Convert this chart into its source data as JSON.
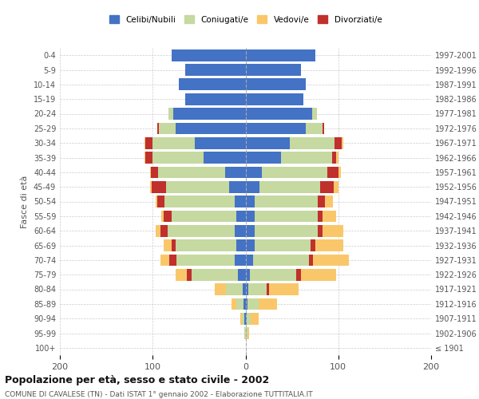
{
  "age_groups": [
    "100+",
    "95-99",
    "90-94",
    "85-89",
    "80-84",
    "75-79",
    "70-74",
    "65-69",
    "60-64",
    "55-59",
    "50-54",
    "45-49",
    "40-44",
    "35-39",
    "30-34",
    "25-29",
    "20-24",
    "15-19",
    "10-14",
    "5-9",
    "0-4"
  ],
  "birth_years": [
    "≤ 1901",
    "1902-1906",
    "1907-1911",
    "1912-1916",
    "1917-1921",
    "1922-1926",
    "1927-1931",
    "1932-1936",
    "1937-1941",
    "1942-1946",
    "1947-1951",
    "1952-1956",
    "1957-1961",
    "1962-1966",
    "1967-1971",
    "1972-1976",
    "1977-1981",
    "1982-1986",
    "1987-1991",
    "1992-1996",
    "1997-2001"
  ],
  "male": {
    "celibi": [
      0,
      0,
      1,
      2,
      3,
      8,
      12,
      10,
      12,
      10,
      12,
      18,
      22,
      45,
      55,
      75,
      78,
      65,
      72,
      65,
      80
    ],
    "coniugati": [
      0,
      1,
      3,
      8,
      18,
      50,
      62,
      65,
      72,
      70,
      75,
      68,
      72,
      55,
      45,
      18,
      5,
      0,
      0,
      0,
      0
    ],
    "vedovi": [
      0,
      0,
      2,
      5,
      12,
      12,
      10,
      8,
      5,
      3,
      2,
      2,
      1,
      1,
      1,
      0,
      0,
      0,
      0,
      0,
      0
    ],
    "divorziati": [
      0,
      0,
      0,
      0,
      0,
      5,
      8,
      5,
      8,
      8,
      8,
      15,
      8,
      8,
      8,
      2,
      0,
      0,
      0,
      0,
      0
    ]
  },
  "female": {
    "nubili": [
      0,
      0,
      1,
      2,
      3,
      5,
      8,
      10,
      10,
      10,
      10,
      15,
      18,
      38,
      48,
      65,
      72,
      62,
      65,
      60,
      75
    ],
    "coniugate": [
      0,
      2,
      5,
      12,
      20,
      50,
      60,
      60,
      68,
      68,
      68,
      65,
      70,
      55,
      48,
      18,
      5,
      0,
      0,
      0,
      0
    ],
    "vedove": [
      0,
      2,
      8,
      20,
      32,
      38,
      38,
      30,
      22,
      15,
      8,
      5,
      3,
      2,
      1,
      0,
      0,
      0,
      0,
      0,
      0
    ],
    "divorziate": [
      0,
      0,
      0,
      0,
      2,
      5,
      5,
      5,
      5,
      5,
      8,
      15,
      12,
      5,
      8,
      2,
      0,
      0,
      0,
      0,
      0
    ]
  },
  "colors": {
    "celibi": "#4472C4",
    "coniugati": "#C5D9A0",
    "vedovi": "#F9C76A",
    "divorziati": "#C0302C"
  },
  "title": "Popolazione per età, sesso e stato civile - 2002",
  "subtitle": "COMUNE DI CAVALESE (TN) - Dati ISTAT 1° gennaio 2002 - Elaborazione TUTTITALIA.IT",
  "ylabel_left": "Fasce di età",
  "xlim": 200,
  "legend_labels": [
    "Celibi/Nubili",
    "Coniugati/e",
    "Vedovi/e",
    "Divorziati/e"
  ],
  "bar_height": 0.8,
  "background_color": "#ffffff",
  "grid_color": "#cccccc"
}
